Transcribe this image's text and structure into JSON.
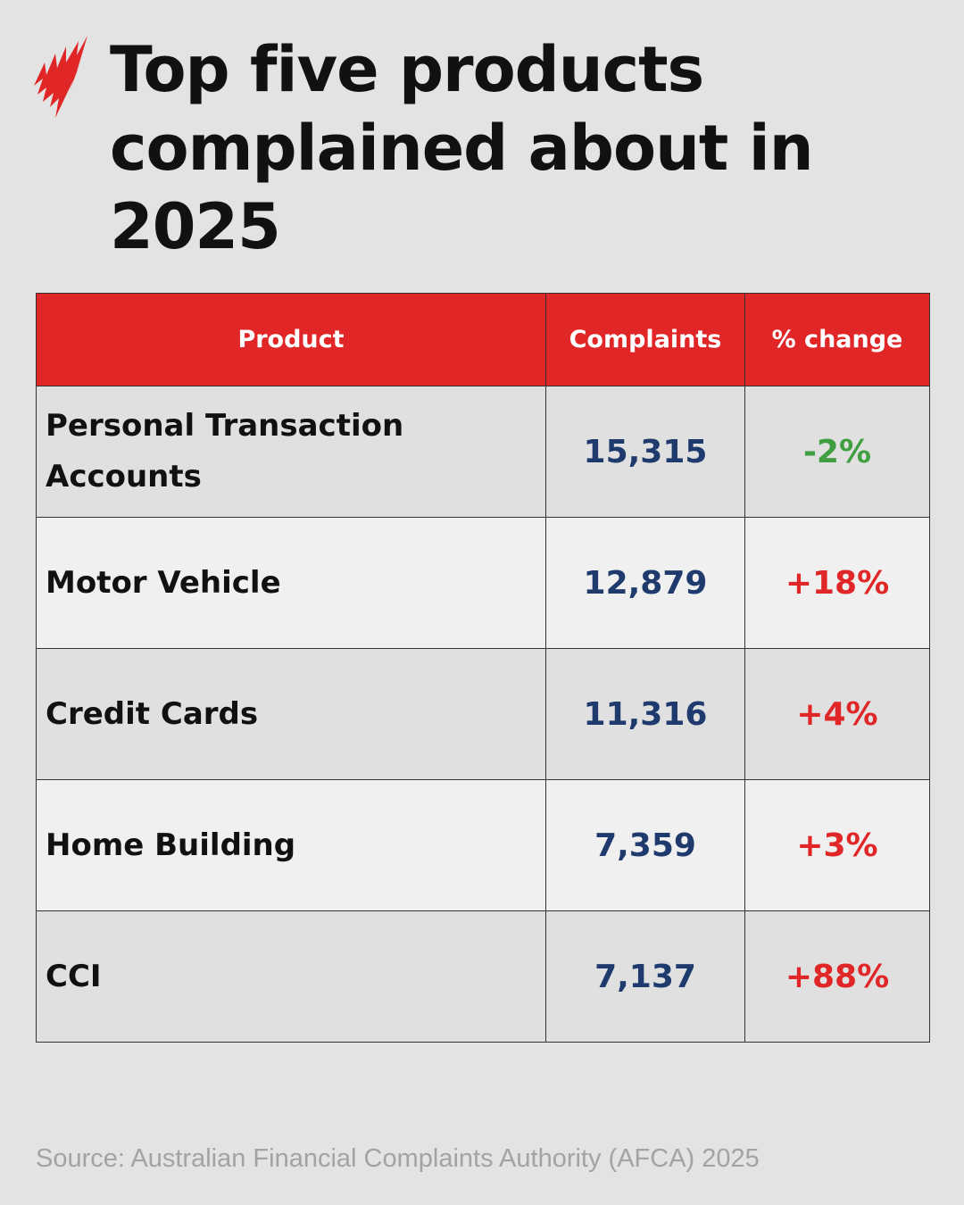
{
  "title": "Top five products complained about in 2025",
  "logo": {
    "icon": "sbs-logo-icon",
    "color": "#e02626"
  },
  "colors": {
    "header": "#e02626",
    "number": "#1f3b6e",
    "decrease": "#3f9e3f",
    "increase": "#e02626"
  },
  "chart_data": {
    "type": "table",
    "title": "Top five products complained about in 2025",
    "columns": [
      "Product",
      "Complaints",
      "% change"
    ],
    "rows": [
      {
        "product": "Personal Transaction Accounts",
        "complaints": "15,315",
        "change": "-2%",
        "complaints_value": 15315,
        "change_value": -2
      },
      {
        "product": "Motor Vehicle",
        "complaints": "12,879",
        "change": "+18%",
        "complaints_value": 12879,
        "change_value": 18
      },
      {
        "product": "Credit Cards",
        "complaints": "11,316",
        "change": "+4%",
        "complaints_value": 11316,
        "change_value": 4
      },
      {
        "product": "Home Building",
        "complaints": "7,359",
        "change": "+3%",
        "complaints_value": 7359,
        "change_value": 3
      },
      {
        "product": "CCI",
        "complaints": "7,137",
        "change": "+88%",
        "complaints_value": 7137,
        "change_value": 88
      }
    ]
  },
  "source": "Source: Australian Financial Complaints Authority (AFCA) 2025"
}
